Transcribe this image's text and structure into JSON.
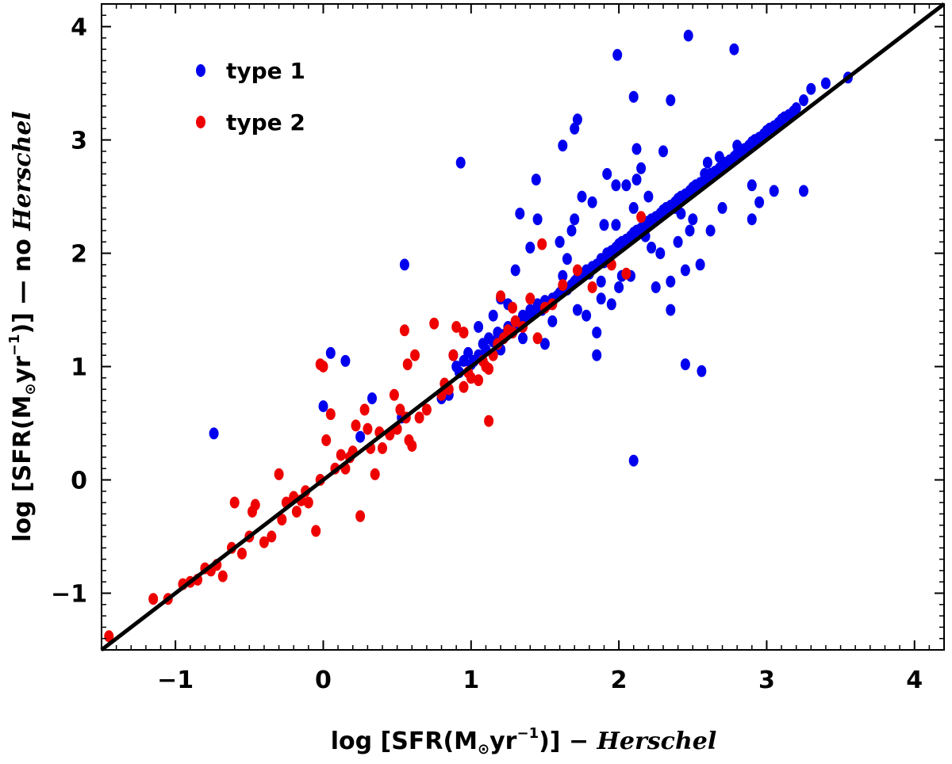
{
  "chart_data": {
    "type": "scatter",
    "title": "",
    "xlabel": {
      "prefix": "log [SFR(M",
      "sun_symbol": "⊙",
      "mid": "yr",
      "exponent": "−1",
      "suffix": ")] − ",
      "italic": "Herschel"
    },
    "ylabel": {
      "prefix": "log [SFR(M",
      "sun_symbol": "⊙",
      "mid": "yr",
      "exponent": "−1",
      "suffix": ")] — no ",
      "italic": "Herschel"
    },
    "xlim": [
      -1.5,
      4.2
    ],
    "ylim": [
      -1.5,
      4.2
    ],
    "xticks": [
      -1,
      0,
      1,
      2,
      3,
      4
    ],
    "yticks": [
      -1,
      0,
      1,
      2,
      3,
      4
    ],
    "xtick_labels": [
      "−1",
      "0",
      "1",
      "2",
      "3",
      "4"
    ],
    "ytick_labels": [
      "−1",
      "0",
      "1",
      "2",
      "3",
      "4"
    ],
    "grid": false,
    "legend_position": "top-left",
    "reference_line": {
      "name": "1:1",
      "color": "#000000",
      "x": [
        -1.5,
        4.2
      ],
      "y": [
        -1.5,
        4.2
      ]
    },
    "series": [
      {
        "name": "type 1",
        "color": "#0000ee",
        "x": [
          -0.74,
          0.0,
          0.05,
          0.15,
          0.25,
          0.33,
          0.53,
          0.55,
          0.8,
          0.85,
          0.88,
          0.9,
          0.92,
          0.95,
          0.98,
          1.0,
          1.02,
          1.05,
          1.08,
          1.1,
          1.12,
          1.15,
          1.18,
          1.2,
          1.22,
          1.25,
          1.28,
          1.3,
          1.32,
          1.35,
          1.38,
          1.4,
          1.42,
          1.45,
          1.48,
          1.5,
          1.52,
          1.55,
          1.58,
          1.6,
          1.62,
          1.65,
          1.68,
          1.7,
          1.72,
          1.75,
          1.78,
          1.8,
          1.82,
          1.85,
          1.88,
          1.9,
          1.92,
          1.95,
          1.98,
          2.0,
          2.02,
          2.05,
          2.08,
          2.1,
          2.12,
          2.15,
          2.18,
          2.2,
          2.22,
          2.25,
          2.28,
          2.3,
          2.32,
          2.35,
          2.38,
          2.4,
          2.42,
          2.45,
          2.48,
          2.5,
          2.52,
          2.55,
          2.58,
          2.6,
          2.62,
          2.65,
          2.68,
          2.7,
          2.72,
          2.75,
          2.78,
          2.8,
          2.82,
          2.85,
          2.88,
          2.9,
          2.92,
          2.95,
          2.98,
          3.0,
          3.02,
          3.05,
          3.08,
          3.1,
          3.12,
          3.15,
          3.18,
          3.2,
          3.25,
          3.3,
          3.4,
          3.55,
          1.6,
          1.7,
          1.78,
          1.85,
          1.95,
          2.05,
          2.15,
          2.25,
          2.35,
          2.45,
          2.55,
          1.4,
          1.5,
          1.3,
          1.2,
          1.65,
          1.75,
          1.9,
          2.1,
          2.0,
          2.2,
          2.3,
          2.4,
          2.5,
          2.6,
          2.7,
          2.8,
          2.9,
          1.45,
          1.55,
          1.62,
          1.68,
          1.72,
          1.82,
          1.88,
          1.98,
          2.08,
          2.12,
          2.18,
          2.28,
          2.38,
          2.48,
          2.58,
          2.68,
          1.35,
          1.25,
          1.15,
          2.47,
          2.78,
          1.99,
          2.1,
          2.35,
          2.12,
          1.98,
          2.56,
          2.45,
          2.1,
          1.85,
          1.52,
          0.93,
          1.44,
          1.62,
          1.72,
          1.33,
          1.05,
          2.95,
          3.05,
          3.25,
          2.35,
          2.62,
          2.9,
          1.88,
          2.02,
          2.22,
          2.42,
          1.6,
          1.92,
          1.7
        ],
        "y": [
          0.41,
          0.65,
          1.12,
          1.05,
          0.38,
          0.72,
          0.55,
          1.9,
          0.72,
          0.75,
          1.1,
          1.0,
          0.95,
          1.05,
          1.12,
          1.02,
          1.05,
          1.1,
          1.2,
          1.15,
          1.25,
          1.22,
          1.3,
          1.15,
          1.28,
          1.35,
          1.3,
          1.4,
          1.38,
          1.45,
          1.42,
          1.5,
          1.48,
          1.55,
          1.5,
          1.58,
          1.55,
          1.6,
          1.62,
          1.65,
          1.7,
          1.68,
          1.72,
          1.75,
          1.78,
          1.8,
          1.85,
          1.82,
          1.88,
          1.9,
          1.95,
          1.92,
          2.0,
          2.02,
          2.05,
          2.08,
          2.1,
          2.12,
          2.15,
          2.18,
          2.2,
          2.22,
          2.25,
          2.28,
          2.3,
          2.32,
          2.35,
          2.38,
          2.4,
          2.42,
          2.45,
          2.48,
          2.5,
          2.52,
          2.55,
          2.58,
          2.6,
          2.62,
          2.65,
          2.68,
          2.7,
          2.72,
          2.75,
          2.78,
          2.8,
          2.82,
          2.85,
          2.88,
          2.9,
          2.92,
          2.95,
          2.98,
          3.0,
          3.02,
          3.05,
          3.08,
          3.1,
          3.12,
          3.15,
          3.18,
          3.2,
          3.22,
          3.25,
          3.28,
          3.35,
          3.45,
          3.5,
          3.55,
          2.1,
          2.3,
          1.45,
          1.3,
          1.55,
          2.6,
          2.75,
          1.7,
          1.5,
          1.85,
          1.9,
          2.05,
          1.2,
          1.85,
          1.6,
          1.95,
          2.5,
          2.25,
          2.4,
          1.7,
          2.5,
          2.9,
          2.1,
          2.3,
          2.8,
          2.4,
          2.95,
          2.6,
          2.3,
          1.4,
          1.8,
          2.2,
          1.5,
          2.45,
          1.6,
          2.25,
          1.8,
          2.65,
          2.15,
          2.0,
          2.4,
          2.2,
          2.7,
          2.85,
          1.25,
          1.55,
          1.45,
          3.92,
          3.8,
          3.75,
          3.38,
          3.35,
          2.92,
          2.6,
          0.96,
          1.02,
          0.17,
          1.1,
          1.55,
          2.8,
          2.65,
          2.95,
          3.18,
          2.35,
          1.35,
          2.45,
          2.55,
          2.55,
          1.75,
          2.2,
          2.3,
          1.75,
          1.8,
          2.05,
          2.35,
          2.1,
          2.7,
          3.1
        ],
        "point_count_visible": "many"
      },
      {
        "name": "type 2",
        "color": "#ee0000",
        "x": [
          -1.45,
          -1.15,
          -1.05,
          -0.95,
          -0.9,
          -0.85,
          -0.8,
          -0.76,
          -0.72,
          -0.68,
          -0.62,
          -0.6,
          -0.55,
          -0.5,
          -0.48,
          -0.46,
          -0.4,
          -0.35,
          -0.3,
          -0.28,
          -0.25,
          -0.2,
          -0.18,
          -0.15,
          -0.12,
          -0.1,
          -0.05,
          -0.02,
          0.0,
          0.02,
          0.05,
          0.08,
          0.12,
          0.15,
          0.18,
          0.2,
          0.25,
          0.28,
          0.3,
          0.32,
          0.35,
          0.38,
          0.4,
          0.45,
          0.48,
          0.5,
          0.52,
          0.55,
          0.58,
          0.6,
          0.65,
          0.7,
          0.75,
          0.8,
          0.82,
          0.85,
          0.88,
          0.9,
          0.95,
          0.98,
          1.0,
          1.05,
          1.08,
          1.1,
          1.12,
          1.15,
          1.18,
          1.2,
          1.22,
          1.25,
          1.28,
          1.3,
          1.35,
          1.4,
          1.45,
          1.5,
          1.55,
          1.62,
          1.72,
          1.82,
          1.95,
          2.05,
          2.15,
          1.48,
          1.28,
          1.12,
          0.95,
          0.56,
          0.62,
          -0.02,
          0.22,
          0.57
        ],
        "y": [
          -1.38,
          -1.05,
          -1.05,
          -0.92,
          -0.9,
          -0.88,
          -0.78,
          -0.8,
          -0.75,
          -0.85,
          -0.6,
          -0.2,
          -0.65,
          -0.5,
          -0.28,
          -0.22,
          -0.55,
          -0.5,
          0.05,
          -0.35,
          -0.2,
          -0.15,
          -0.28,
          -0.18,
          -0.1,
          -0.2,
          -0.45,
          0.0,
          1.0,
          0.35,
          0.58,
          0.1,
          0.22,
          0.1,
          0.2,
          0.25,
          -0.32,
          0.62,
          0.45,
          0.28,
          0.05,
          0.42,
          0.28,
          0.4,
          0.75,
          0.45,
          0.62,
          1.32,
          0.35,
          0.3,
          0.55,
          0.62,
          1.38,
          0.75,
          0.85,
          0.8,
          1.1,
          1.35,
          0.82,
          0.95,
          0.9,
          0.88,
          1.05,
          1.0,
          0.98,
          1.1,
          1.2,
          1.62,
          1.25,
          1.32,
          1.3,
          1.4,
          1.35,
          1.6,
          1.25,
          1.52,
          1.55,
          1.72,
          1.85,
          1.7,
          1.9,
          1.82,
          2.32,
          2.08,
          1.52,
          0.52,
          1.3,
          0.55,
          1.1,
          1.02,
          0.48,
          1.02
        ]
      }
    ]
  }
}
